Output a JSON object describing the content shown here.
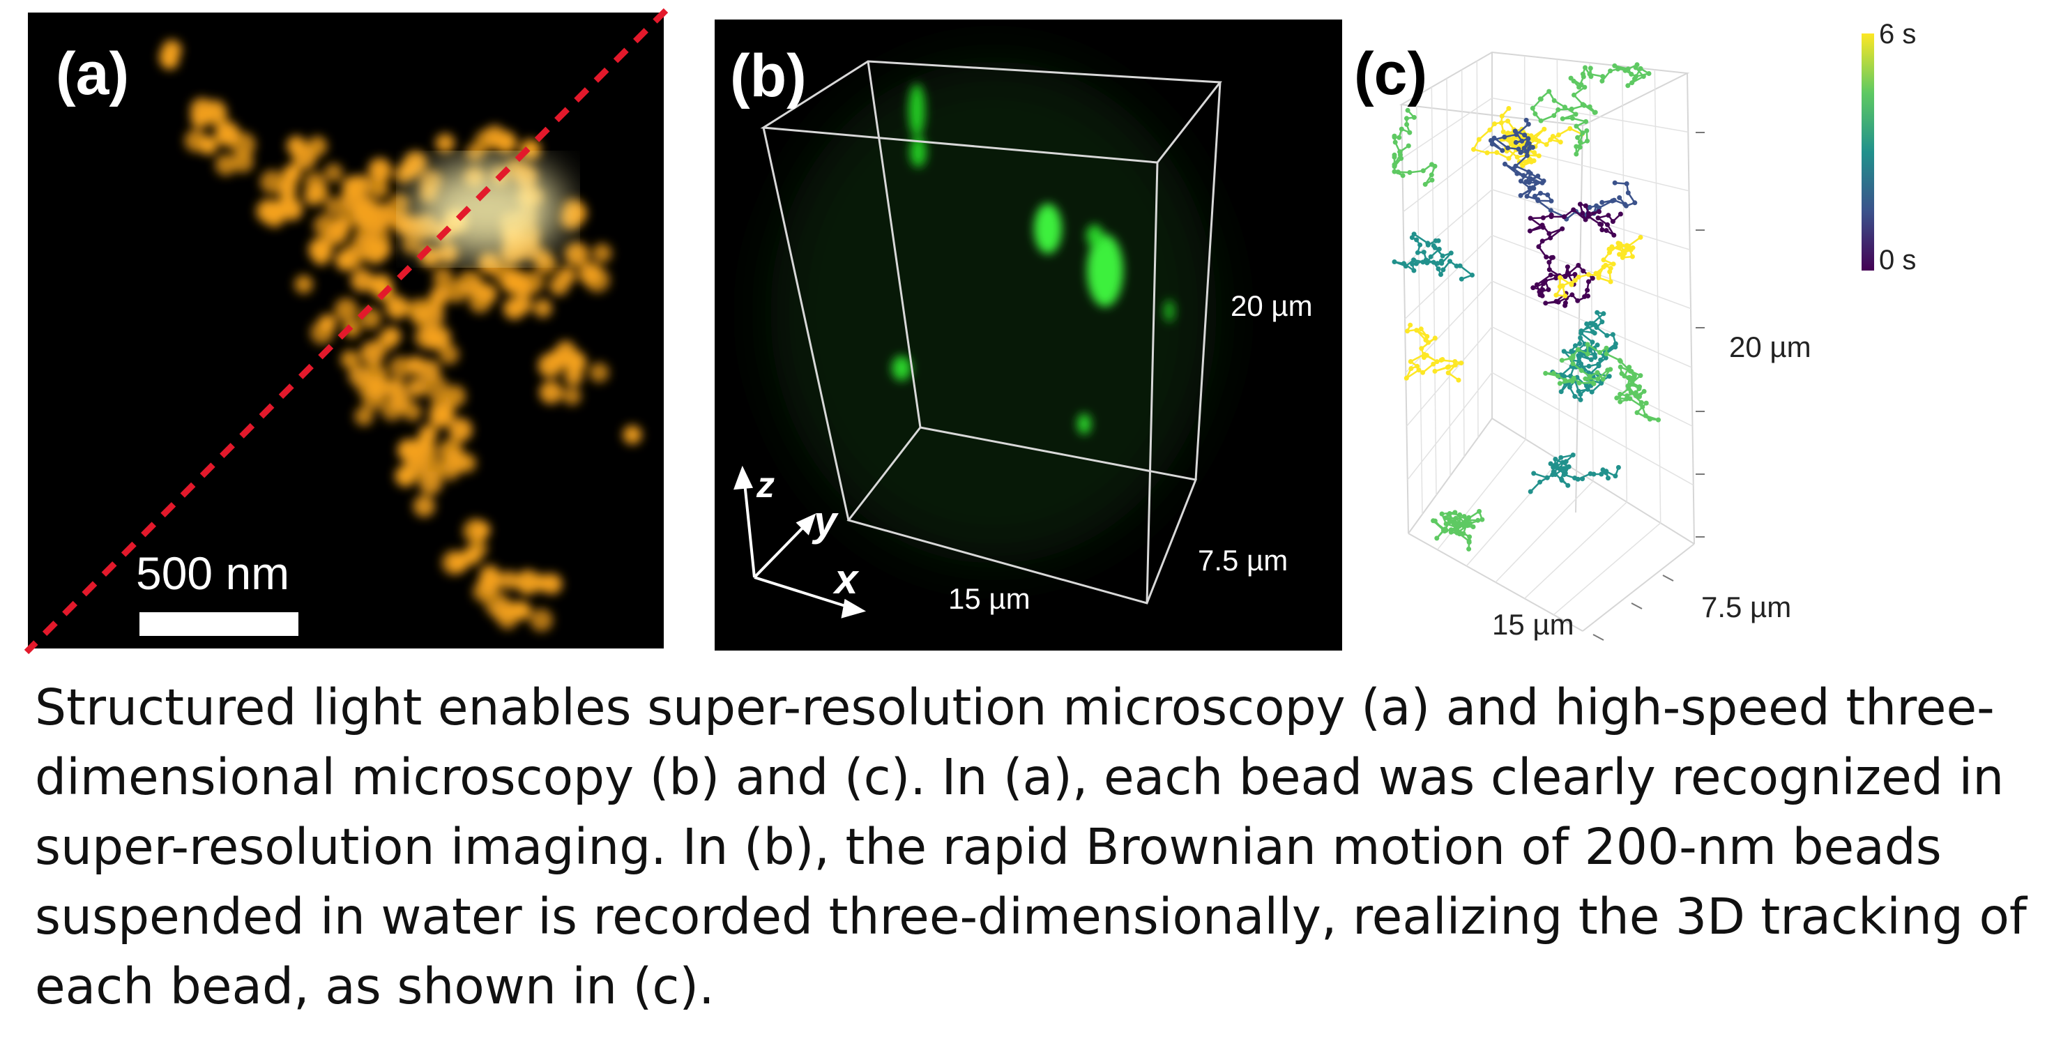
{
  "figure": {
    "panels": [
      {
        "label": "(a)",
        "scale_bar": "500 nm",
        "colors": {
          "background": "#000000",
          "beads": "#f5a21c",
          "bright_core": "#fff2a0",
          "diagonal": "#e3192b"
        }
      },
      {
        "label": "(b)",
        "dimension_z": "20 µm",
        "dimension_x": "15 µm",
        "dimension_y": "7.5 µm",
        "axes": {
          "z": "z",
          "y": "y",
          "x": "x"
        },
        "colors": {
          "background": "#000000",
          "beads": "#2ee82e",
          "box": "#d8d8d8"
        }
      },
      {
        "label": "(c)",
        "dimension_z": "20 µm",
        "dimension_x": "15 µm",
        "dimension_y": "7.5 µm",
        "colorbar": {
          "max_label": "6 s",
          "min_label": "0 s",
          "colormap": "viridis"
        }
      }
    ],
    "caption": "Structured light enables super-resolution microscopy (a) and high-speed three-dimensional microscopy (b) and (c). In (a), each bead was clearly recognized in super-resolution imaging. In (b), the rapid Brownian motion of 200-nm beads suspended in water is recorded three-dimensionally, realizing the 3D tracking of each bead, as shown in (c)."
  }
}
